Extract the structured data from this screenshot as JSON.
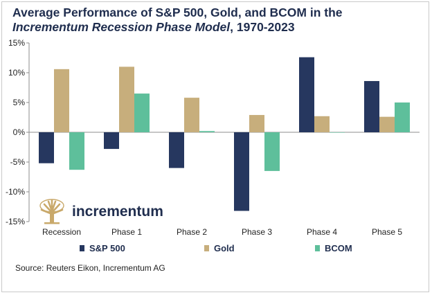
{
  "title": {
    "line1": "Average Performance of S&P 500, Gold, and BCOM in the",
    "line2_italic": "Incrementum Recession Phase Model",
    "line2_rest": ", 1970-2023"
  },
  "source": "Source: Reuters Eikon, Incrementum AG",
  "logo": {
    "text": "incrementum",
    "icon": "tree-logo-icon",
    "color": "#c9a96b"
  },
  "colors": {
    "sp500": "#26375f",
    "gold": "#c7ae7c",
    "bcom": "#5ebf9b"
  },
  "chart_data": {
    "type": "bar",
    "title": "Average Performance of S&P 500, Gold, and BCOM in the Incrementum Recession Phase Model, 1970-2023",
    "categories": [
      "Recession",
      "Phase 1",
      "Phase 2",
      "Phase 3",
      "Phase 4",
      "Phase 5"
    ],
    "series": [
      {
        "name": "S&P 500",
        "values": [
          -5.2,
          -2.8,
          -6.0,
          -13.2,
          12.6,
          8.6
        ]
      },
      {
        "name": "Gold",
        "values": [
          10.6,
          11.0,
          5.8,
          2.9,
          2.7,
          2.6
        ]
      },
      {
        "name": "BCOM",
        "values": [
          -6.3,
          6.5,
          0.2,
          -6.5,
          0.0,
          5.0
        ]
      }
    ],
    "yticks": [
      "15%",
      "10%",
      "5%",
      "0%",
      "-5%",
      "-10%",
      "-15%"
    ],
    "ylim": [
      -15,
      15
    ],
    "grid": false,
    "legend_position": "bottom"
  }
}
